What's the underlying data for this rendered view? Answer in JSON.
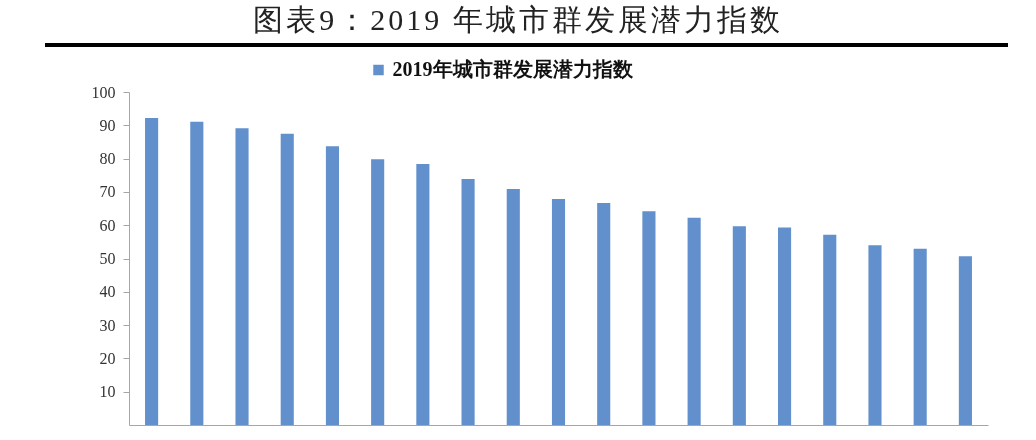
{
  "chart_data": {
    "type": "bar",
    "title": "图表9：2019 年城市群发展潜力指数",
    "categories": [
      null,
      null,
      null,
      null,
      null,
      null,
      null,
      null,
      null,
      null,
      null,
      null,
      null,
      null,
      null,
      null,
      null,
      null,
      null
    ],
    "series": [
      {
        "name": "2019年城市群发展潜力指数",
        "color": "#6190cc",
        "values": [
          92.2,
          91.1,
          89.1,
          87.5,
          83.7,
          79.8,
          78.4,
          73.9,
          70.9,
          67.9,
          66.7,
          64.2,
          62.2,
          59.7,
          59.3,
          57.1,
          54.0,
          52.9,
          50.7
        ]
      }
    ],
    "ylim": [
      0,
      100
    ],
    "yticks": [
      10,
      20,
      30,
      40,
      50,
      60,
      70,
      80,
      90,
      100
    ],
    "legend": "top",
    "tick_labels": "y"
  }
}
